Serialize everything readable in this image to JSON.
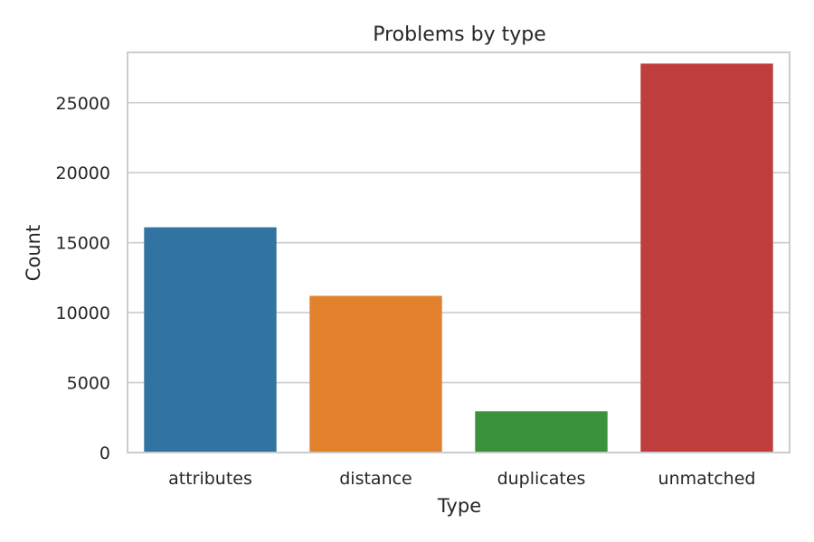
{
  "chart_data": {
    "type": "bar",
    "title": "Problems by type",
    "xlabel": "Type",
    "ylabel": "Count",
    "categories": [
      "attributes",
      "distance",
      "duplicates",
      "unmatched"
    ],
    "values": [
      16100,
      11200,
      2950,
      27800
    ],
    "colors": [
      "#3274a1",
      "#e1812c",
      "#3a923a",
      "#c03d3e"
    ],
    "ylim": [
      0,
      28600
    ],
    "yticks": [
      0,
      5000,
      10000,
      15000,
      20000,
      25000
    ],
    "grid": true,
    "grid_color": "#cccccc",
    "legend": "none"
  }
}
